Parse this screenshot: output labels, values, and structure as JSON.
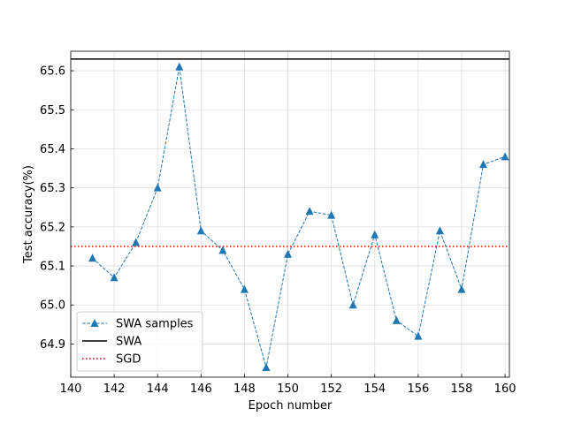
{
  "chart_data": {
    "type": "line",
    "title": "",
    "xlabel": "Epoch number",
    "ylabel": "Test accuracy(%)",
    "xlim": [
      140,
      160.2
    ],
    "ylim": [
      64.815,
      65.65
    ],
    "grid": true,
    "xticks": [
      140,
      142,
      144,
      146,
      148,
      150,
      152,
      154,
      156,
      158,
      160
    ],
    "yticks": [
      64.9,
      65.0,
      65.1,
      65.2,
      65.3,
      65.4,
      65.5,
      65.6
    ],
    "ytick_labels": [
      "64.9",
      "65.0",
      "65.1",
      "65.2",
      "65.3",
      "65.4",
      "65.5",
      "65.6"
    ],
    "legend_position": "lower-left",
    "series": [
      {
        "name": "SWA samples",
        "style": "dashed-line-triangle-markers",
        "color": "#1f77b4",
        "x": [
          141,
          142,
          143,
          144,
          145,
          146,
          147,
          148,
          149,
          150,
          151,
          152,
          153,
          154,
          155,
          156,
          157,
          158,
          159,
          160
        ],
        "y": [
          65.12,
          65.07,
          65.16,
          65.3,
          65.61,
          65.19,
          65.14,
          65.04,
          64.84,
          65.13,
          65.24,
          65.23,
          65.0,
          65.18,
          64.96,
          64.92,
          65.19,
          65.04,
          65.36,
          65.38
        ]
      },
      {
        "name": "SWA",
        "style": "solid-horizontal-line",
        "color": "#000000",
        "y": 65.63
      },
      {
        "name": "SGD",
        "style": "dotted-horizontal-line",
        "color": "#ff0000",
        "y": 65.15
      }
    ]
  }
}
